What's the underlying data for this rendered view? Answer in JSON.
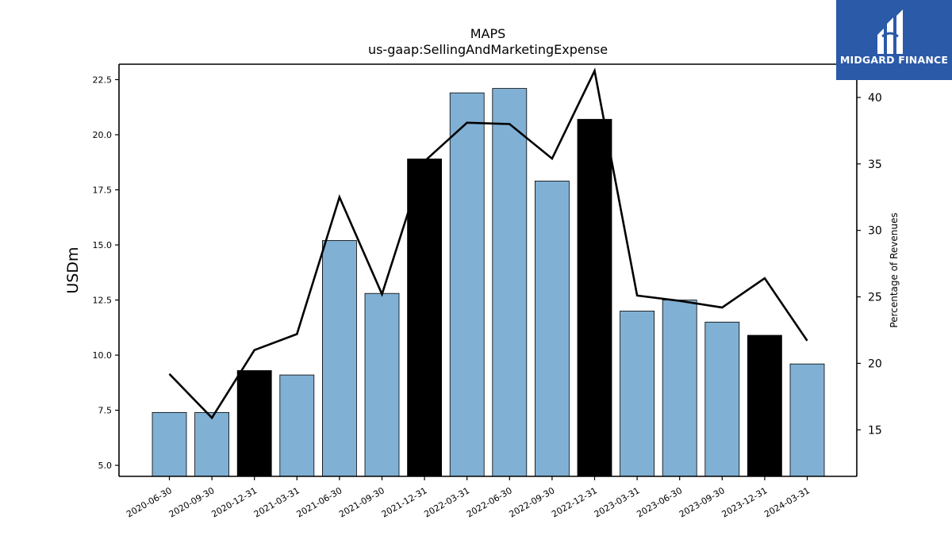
{
  "logo": {
    "text": "MIDGARD FINANCE",
    "background": "#2b5aa8"
  },
  "chart_data": {
    "type": "bar",
    "title": "MAPS",
    "subtitle": "us-gaap:SellingAndMarketingExpense",
    "ylabel": "USDm",
    "y2label": "Percentage of Revenues",
    "ylim": [
      4.5,
      23.2
    ],
    "y2lim": [
      11.5,
      42.5
    ],
    "yticks": [
      5.0,
      7.5,
      10.0,
      12.5,
      15.0,
      17.5,
      20.0,
      22.5
    ],
    "y2ticks": [
      15,
      20,
      25,
      30,
      35,
      40
    ],
    "categories": [
      "2020-06-30",
      "2020-09-30",
      "2020-12-31",
      "2021-03-31",
      "2021-06-30",
      "2021-09-30",
      "2021-12-31",
      "2022-03-31",
      "2022-06-30",
      "2022-09-30",
      "2022-12-31",
      "2023-03-31",
      "2023-06-30",
      "2023-09-30",
      "2023-12-31",
      "2024-03-31"
    ],
    "series": [
      {
        "type": "bar",
        "axis": "left",
        "values": [
          7.4,
          7.4,
          9.3,
          9.1,
          15.2,
          12.8,
          18.9,
          21.9,
          22.1,
          17.9,
          20.7,
          12.0,
          12.5,
          11.5,
          10.9,
          9.6
        ],
        "colors": [
          "#80b0d4",
          "#80b0d4",
          "#000000",
          "#80b0d4",
          "#80b0d4",
          "#80b0d4",
          "#000000",
          "#80b0d4",
          "#80b0d4",
          "#80b0d4",
          "#000000",
          "#80b0d4",
          "#80b0d4",
          "#80b0d4",
          "#000000",
          "#80b0d4"
        ]
      },
      {
        "type": "line",
        "axis": "right",
        "color": "#000000",
        "values": [
          19.2,
          15.9,
          21.0,
          22.2,
          32.5,
          25.2,
          35.2,
          38.1,
          38.0,
          35.4,
          42.0,
          25.1,
          24.7,
          24.2,
          26.4,
          21.7
        ]
      }
    ],
    "grid": false,
    "legend": "none"
  }
}
